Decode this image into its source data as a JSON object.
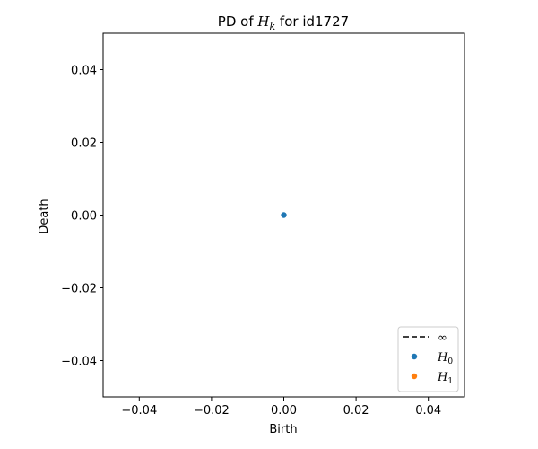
{
  "chart_data": {
    "type": "scatter",
    "title": {
      "prefix": "PD of ",
      "var": "H",
      "sub": "k",
      "suffix": " for id1727"
    },
    "xlabel": "Birth",
    "ylabel": "Death",
    "xlim": [
      -0.05,
      0.05
    ],
    "ylim": [
      -0.05,
      0.05
    ],
    "xticks": [
      -0.04,
      -0.02,
      0.0,
      0.02,
      0.04
    ],
    "yticks": [
      -0.04,
      -0.02,
      0.0,
      0.02,
      0.04
    ],
    "xtick_labels": [
      "−0.04",
      "−0.02",
      "0.00",
      "0.02",
      "0.04"
    ],
    "ytick_labels": [
      "−0.04",
      "−0.02",
      "0.00",
      "0.02",
      "0.04"
    ],
    "grid": false,
    "legend_position": "bottom-right",
    "legend": [
      {
        "label": "∞",
        "kind": "dashed-line",
        "color": "#000000"
      },
      {
        "var": "H",
        "sub": "0",
        "kind": "marker",
        "color": "#1f77b4"
      },
      {
        "var": "H",
        "sub": "1",
        "kind": "marker",
        "color": "#ff7f0e"
      }
    ],
    "series": [
      {
        "color": "#1f77b4",
        "points": [
          {
            "x": 0.0,
            "y": 0.0
          }
        ]
      },
      {
        "color": "#ff7f0e",
        "points": []
      }
    ]
  }
}
